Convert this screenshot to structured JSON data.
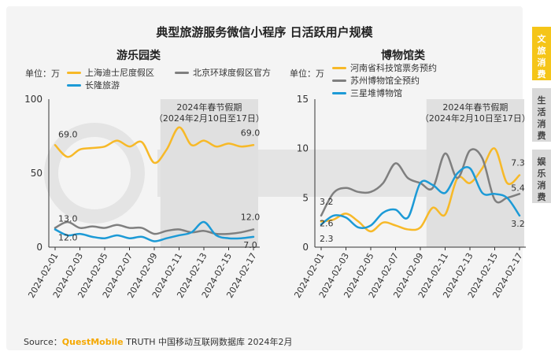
{
  "title": "典型旅游服务微信小程序 日活跃用户规模",
  "source": {
    "prefix": "Source：",
    "brand": "QuestMobile",
    "rest": " TRUTH 中国移动互联网数据库 2024年2月"
  },
  "side_tabs": [
    {
      "label": "文旅消费",
      "active": true
    },
    {
      "label": "生活消费",
      "active": false
    },
    {
      "label": "娱乐消费",
      "active": false
    }
  ],
  "colors": {
    "yellow": "#f7b928",
    "gray": "#7f7f7f",
    "blue": "#1c9ad6",
    "holiday": "#e0e0e0",
    "tab_active": "#f5c518",
    "tab_inactive": "#d9d9d9"
  },
  "chart_data": [
    {
      "type": "line",
      "panel_title": "游乐园类",
      "unit_label": "单位：万",
      "holiday_label_1": "2024年春节假期",
      "holiday_label_2": "（2024年2月10日至17日）",
      "holiday_range": [
        "2024-02-10",
        "2024-02-17"
      ],
      "x": [
        "2024-02-01",
        "2024-02-02",
        "2024-02-03",
        "2024-02-04",
        "2024-02-05",
        "2024-02-06",
        "2024-02-07",
        "2024-02-08",
        "2024-02-09",
        "2024-02-10",
        "2024-02-11",
        "2024-02-12",
        "2024-02-13",
        "2024-02-14",
        "2024-02-15",
        "2024-02-16",
        "2024-02-17"
      ],
      "x_tick_labels": [
        "2024-02-01",
        "2024-02-03",
        "2024-02-05",
        "2024-02-07",
        "2024-02-09",
        "2024-02-11",
        "2024-02-13",
        "2024-02-15",
        "2024-02-17"
      ],
      "ylim": [
        0,
        100
      ],
      "y_ticks": [
        0,
        50,
        100
      ],
      "series": [
        {
          "name": "上海迪士尼度假区",
          "color": "#f7b928",
          "values": [
            69.0,
            61,
            66,
            67,
            68,
            72,
            68,
            71,
            57,
            66,
            81,
            69,
            72,
            68,
            70,
            68,
            69.0
          ]
        },
        {
          "name": "北京环球度假区官方",
          "color": "#7f7f7f",
          "values": [
            13.0,
            17,
            13,
            14,
            13,
            15,
            13,
            13,
            9,
            11,
            12,
            10,
            11,
            9,
            9,
            10,
            12.0
          ]
        },
        {
          "name": "长隆旅游",
          "color": "#1c9ad6",
          "values": [
            12.0,
            8,
            9,
            7,
            6,
            8,
            6,
            7,
            4,
            6,
            8,
            10,
            17,
            8,
            6,
            6,
            7.0
          ]
        }
      ],
      "data_labels": [
        {
          "text": "69.0",
          "series": 0,
          "index": 0
        },
        {
          "text": "69.0",
          "series": 0,
          "index": 16
        },
        {
          "text": "13.0",
          "series": 1,
          "index": 0
        },
        {
          "text": "12.0",
          "series": 1,
          "index": 16
        },
        {
          "text": "12.0",
          "series": 2,
          "index": 0
        },
        {
          "text": "7.0",
          "series": 2,
          "index": 16
        }
      ]
    },
    {
      "type": "line",
      "panel_title": "博物馆类",
      "unit_label": "单位：万",
      "holiday_label_1": "2024年春节假期",
      "holiday_label_2": "（2024年2月10日至17日）",
      "holiday_range": [
        "2024-02-10",
        "2024-02-17"
      ],
      "x": [
        "2024-02-01",
        "2024-02-02",
        "2024-02-03",
        "2024-02-04",
        "2024-02-05",
        "2024-02-06",
        "2024-02-07",
        "2024-02-08",
        "2024-02-09",
        "2024-02-10",
        "2024-02-11",
        "2024-02-12",
        "2024-02-13",
        "2024-02-14",
        "2024-02-15",
        "2024-02-16",
        "2024-02-17"
      ],
      "x_tick_labels": [
        "2024-02-01",
        "2024-02-03",
        "2024-02-05",
        "2024-02-07",
        "2024-02-09",
        "2024-02-11",
        "2024-02-13",
        "2024-02-15",
        "2024-02-17"
      ],
      "ylim": [
        0,
        15
      ],
      "y_ticks": [
        0,
        5,
        10,
        15
      ],
      "series": [
        {
          "name": "河南省科技馆票务预约",
          "color": "#f7b928",
          "values": [
            2.6,
            2.8,
            3.4,
            2.6,
            1.6,
            2.5,
            2.2,
            1.8,
            2.0,
            4.0,
            3.3,
            7.0,
            6.5,
            8.0,
            10.0,
            6.5,
            7.3
          ]
        },
        {
          "name": "苏州博物馆全预约",
          "color": "#7f7f7f",
          "values": [
            3.2,
            5.5,
            6.0,
            5.6,
            5.6,
            6.5,
            8.5,
            7.0,
            6.5,
            6.0,
            9.5,
            7.0,
            9.8,
            9.0,
            4.8,
            5.0,
            5.4
          ]
        },
        {
          "name": "三星堆博物馆",
          "color": "#1c9ad6",
          "values": [
            2.3,
            3.2,
            3.0,
            2.0,
            2.2,
            3.5,
            3.8,
            3.0,
            6.5,
            6.3,
            5.5,
            7.5,
            8.0,
            5.5,
            5.4,
            5.0,
            3.2
          ]
        }
      ],
      "data_labels": [
        {
          "text": "3.2",
          "series": 1,
          "index": 0
        },
        {
          "text": "2.6",
          "series": 0,
          "index": 0
        },
        {
          "text": "2.3",
          "series": 2,
          "index": 0
        },
        {
          "text": "7.3",
          "series": 0,
          "index": 16
        },
        {
          "text": "5.4",
          "series": 1,
          "index": 16
        },
        {
          "text": "3.2",
          "series": 2,
          "index": 16
        }
      ]
    }
  ]
}
